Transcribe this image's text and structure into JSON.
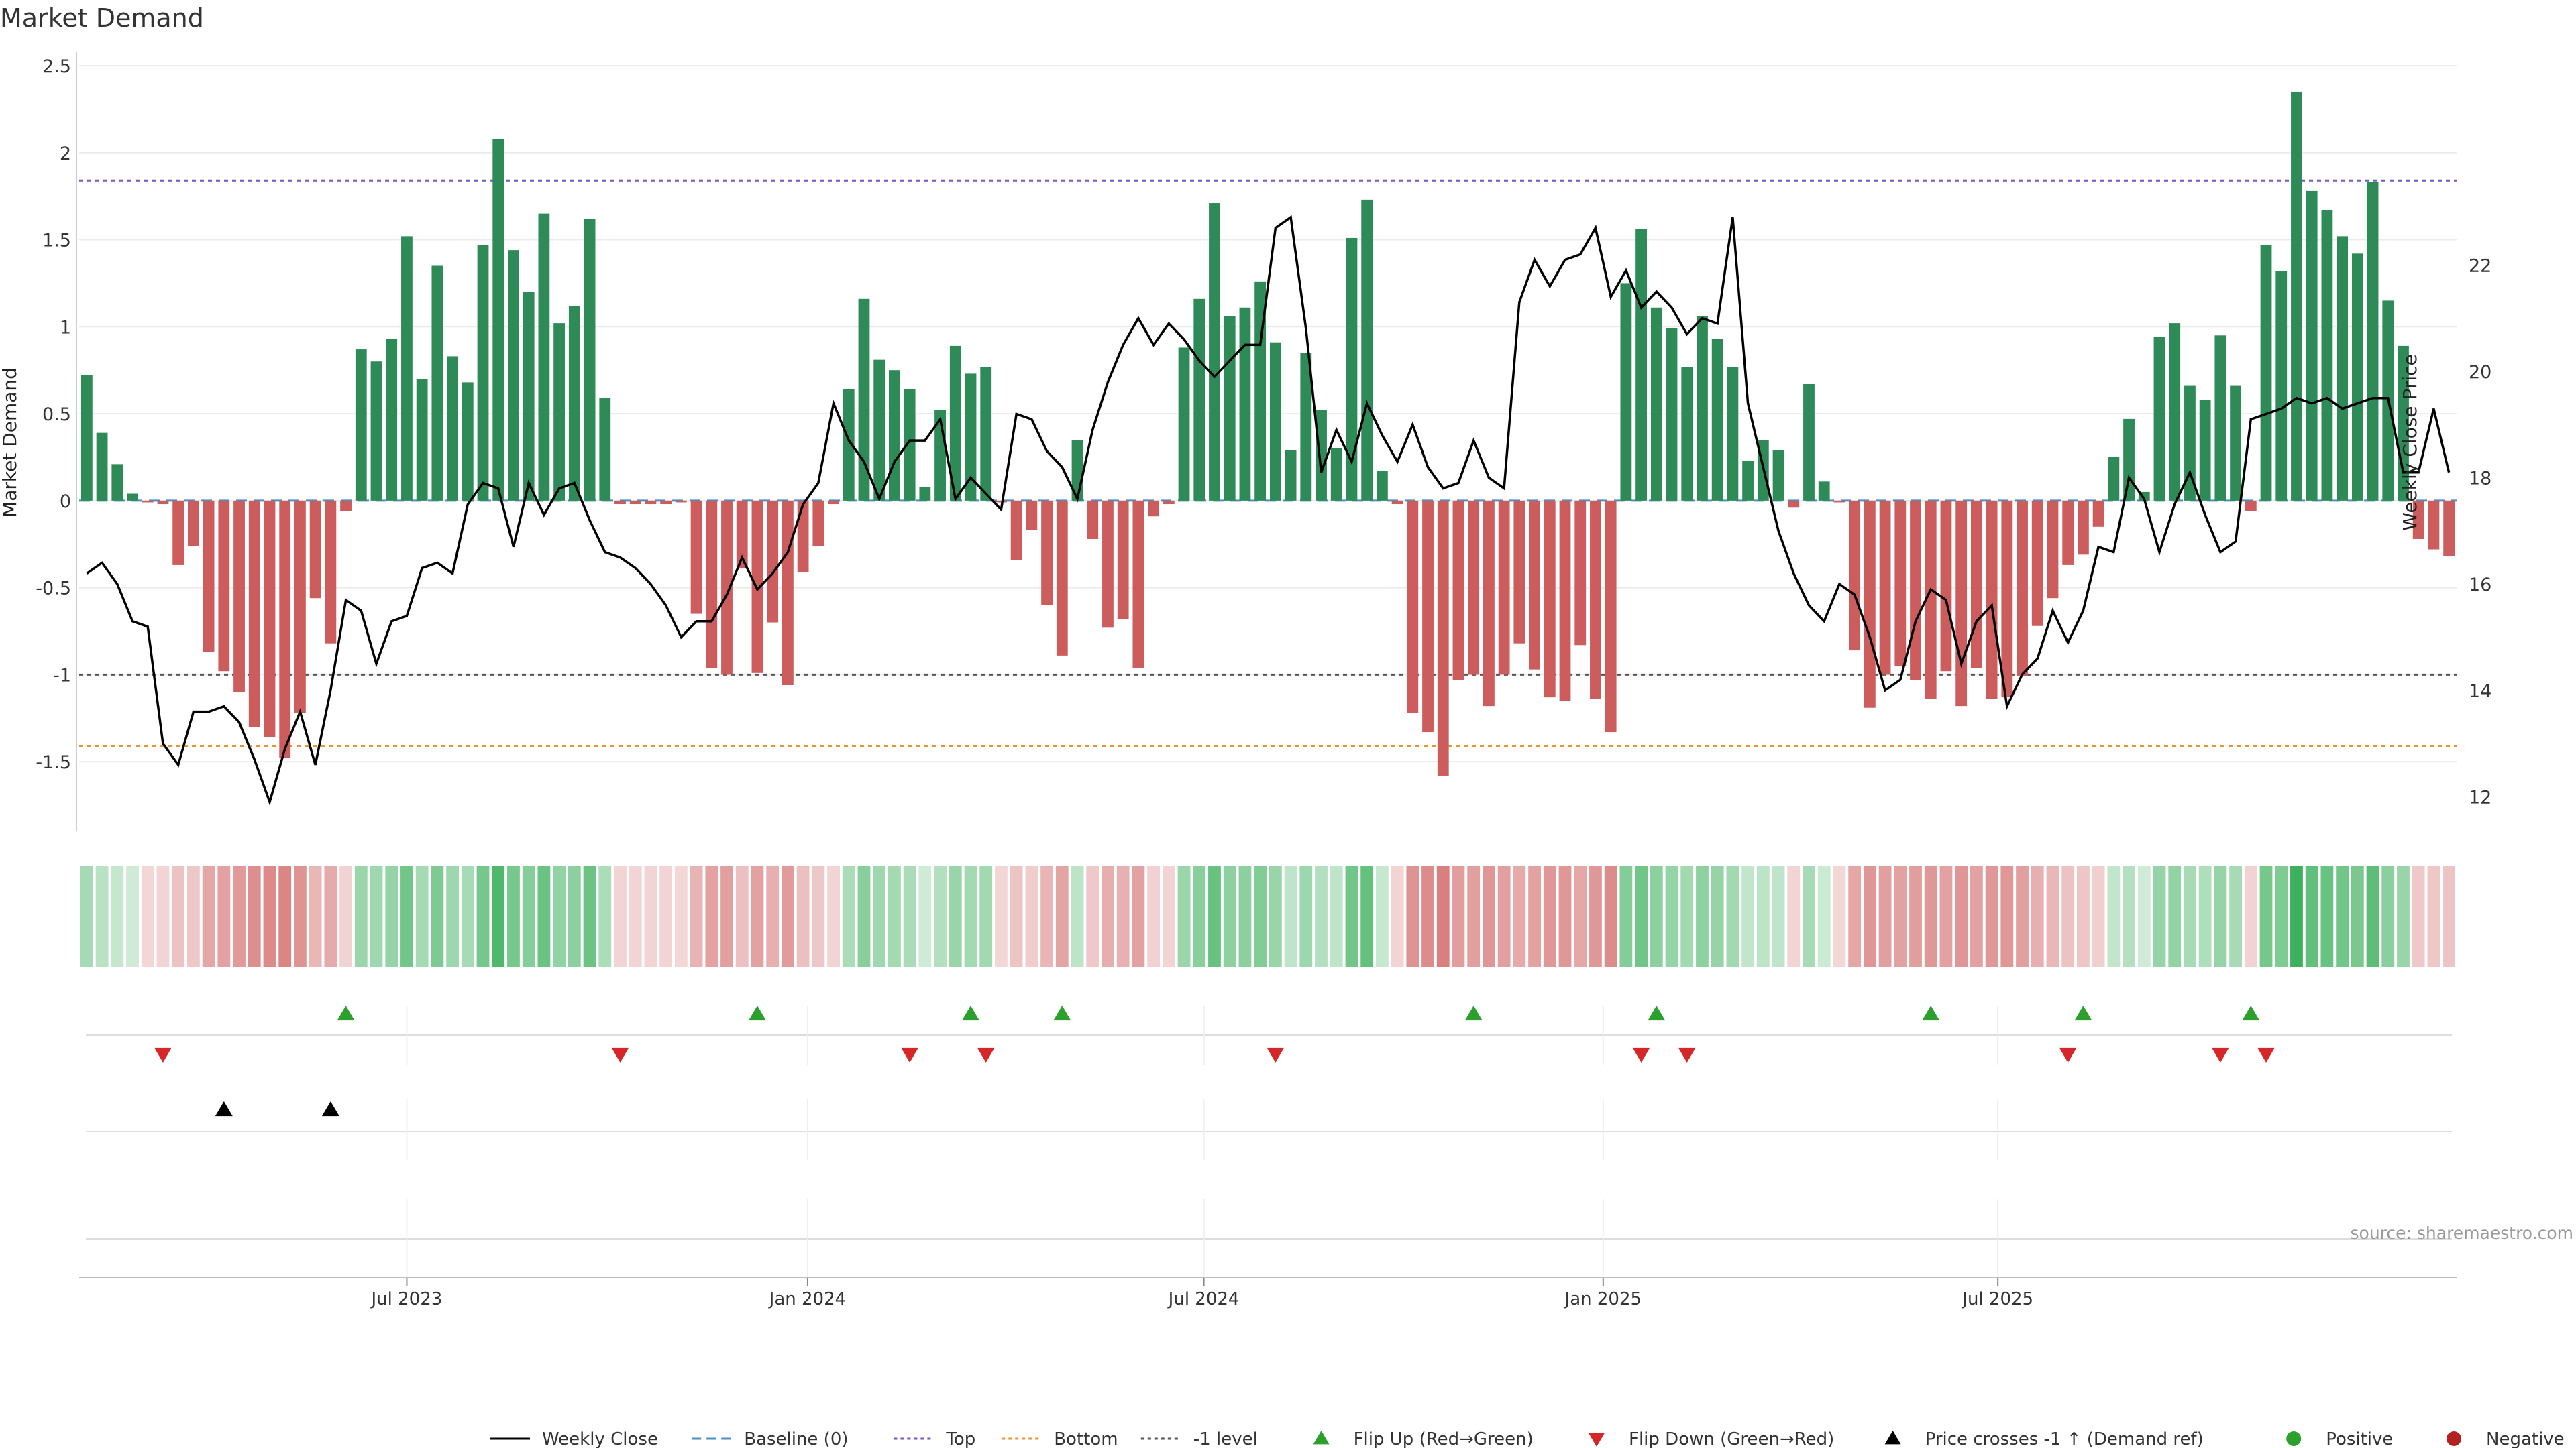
{
  "title": "Market Demand",
  "source_note": "source: sharemaestro.com",
  "colors": {
    "positive_bar": "#2e8b57",
    "negative_bar": "#cd5c5c",
    "price_line": "#000000",
    "baseline": "#4a90c2",
    "top_line": "#6a5acd",
    "bottom_line": "#e8962c",
    "minus1_line": "#555555",
    "flip_up": "#2ca02c",
    "flip_down": "#d62728",
    "cross_marker": "#000000",
    "positive_dot": "#2ca02c",
    "negative_dot": "#b22222",
    "grid": "#ebebeb"
  },
  "legend": [
    {
      "label": "Weekly Close",
      "kind": "line",
      "style": "solid",
      "color": "#000000"
    },
    {
      "label": "Baseline (0)",
      "kind": "line",
      "style": "dash",
      "color": "#4a90c2"
    },
    {
      "label": "Top",
      "kind": "line",
      "style": "dot",
      "color": "#6a5acd"
    },
    {
      "label": "Bottom",
      "kind": "line",
      "style": "dot",
      "color": "#e8962c"
    },
    {
      "label": "-1 level",
      "kind": "line",
      "style": "dot",
      "color": "#555555"
    },
    {
      "label": "Flip Up (Red→Green)",
      "kind": "tri-up",
      "color": "#2ca02c"
    },
    {
      "label": "Flip Down (Green→Red)",
      "kind": "tri-down",
      "color": "#d62728"
    },
    {
      "label": "Price crosses -1 ↑ (Demand ref)",
      "kind": "tri-up",
      "color": "#000000"
    },
    {
      "label": "Positive",
      "kind": "dot",
      "color": "#2ca02c"
    },
    {
      "label": "Negative",
      "kind": "dot",
      "color": "#b22222"
    }
  ],
  "chart_data": {
    "type": "bar",
    "title": "Market Demand",
    "ylabel": "Market Demand",
    "y2label": "Weekly Close Price",
    "ylim": [
      -1.9,
      2.5
    ],
    "y2lim": [
      11.35,
      25.75
    ],
    "yticks": [
      2.5,
      2,
      1.5,
      1,
      0.5,
      0,
      -0.5,
      -1,
      -1.5
    ],
    "y2ticks": [
      22,
      20,
      18,
      16,
      14,
      12
    ],
    "xticks": [
      "Jul 2023",
      "Jan 2024",
      "Jul 2024",
      "Jan 2025",
      "Jul 2025"
    ],
    "xtick_index": [
      21.5,
      47.8,
      73.8,
      100,
      125.9
    ],
    "legend_position": "bottom",
    "grid": true,
    "top_level": 1.84,
    "bottom_level": -1.41,
    "minus1_level": -1.0,
    "series": [
      {
        "name": "Market Demand",
        "type": "bar",
        "values": [
          0.72,
          0.39,
          0.21,
          0.04,
          -0.01,
          -0.02,
          -0.37,
          -0.26,
          -0.87,
          -0.98,
          -1.1,
          -1.3,
          -1.36,
          -1.48,
          -1.22,
          -0.56,
          -0.82,
          -0.06,
          0.87,
          0.8,
          0.93,
          1.52,
          0.7,
          1.35,
          0.83,
          0.68,
          1.47,
          2.08,
          1.44,
          1.2,
          1.65,
          1.02,
          1.12,
          1.62,
          0.59,
          -0.02,
          -0.02,
          -0.02,
          -0.02,
          -0.01,
          -0.65,
          -0.96,
          -1.0,
          -0.39,
          -0.99,
          -0.7,
          -1.06,
          -0.41,
          -0.26,
          -0.02,
          0.64,
          1.16,
          0.81,
          0.75,
          0.64,
          0.08,
          0.52,
          0.89,
          0.73,
          0.77,
          -0.01,
          -0.34,
          -0.17,
          -0.6,
          -0.89,
          0.35,
          -0.22,
          -0.73,
          -0.68,
          -0.96,
          -0.09,
          -0.02,
          0.88,
          1.16,
          1.71,
          1.06,
          1.11,
          1.26,
          0.91,
          0.29,
          0.85,
          0.52,
          0.3,
          1.51,
          1.73,
          0.17,
          -0.02,
          -1.22,
          -1.33,
          -1.58,
          -1.03,
          -1.0,
          -1.18,
          -1.0,
          -0.82,
          -0.97,
          -1.13,
          -1.15,
          -0.83,
          -1.14,
          -1.33,
          1.25,
          1.56,
          1.11,
          0.99,
          0.77,
          1.06,
          0.93,
          0.77,
          0.23,
          0.35,
          0.29,
          -0.04,
          0.67,
          0.11,
          -0.01,
          -0.86,
          -1.19,
          -1.0,
          -0.95,
          -1.03,
          -1.14,
          -0.98,
          -1.18,
          -0.96,
          -1.14,
          -1.13,
          -1.01,
          -0.72,
          -0.56,
          -0.37,
          -0.31,
          -0.15,
          0.25,
          0.47,
          0.05,
          0.94,
          1.02,
          0.66,
          0.58,
          0.95,
          0.66,
          -0.06,
          1.47,
          1.32,
          2.35,
          1.78,
          1.67,
          1.52,
          1.42,
          1.83,
          1.15,
          0.89,
          -0.22,
          -0.28,
          -0.32
        ]
      },
      {
        "name": "Weekly Close",
        "type": "line",
        "axis": "right",
        "values": [
          16.2,
          16.4,
          16.0,
          15.3,
          15.2,
          13.0,
          12.6,
          13.6,
          13.6,
          13.7,
          13.4,
          12.7,
          11.9,
          12.9,
          13.6,
          12.6,
          14.0,
          15.7,
          15.5,
          14.5,
          15.3,
          15.4,
          16.3,
          16.4,
          16.2,
          17.5,
          17.9,
          17.8,
          16.7,
          17.9,
          17.3,
          17.8,
          17.9,
          17.2,
          16.6,
          16.5,
          16.3,
          16.0,
          15.6,
          15.0,
          15.3,
          15.3,
          15.8,
          16.5,
          15.9,
          16.2,
          16.6,
          17.5,
          17.9,
          19.4,
          18.7,
          18.3,
          17.6,
          18.3,
          18.7,
          18.7,
          19.1,
          17.6,
          18.0,
          17.7,
          17.4,
          19.2,
          19.1,
          18.5,
          18.2,
          17.6,
          18.9,
          19.8,
          20.5,
          21.0,
          20.5,
          20.9,
          20.6,
          20.2,
          19.9,
          20.2,
          20.5,
          20.5,
          22.7,
          22.9,
          20.8,
          18.1,
          18.9,
          18.3,
          19.4,
          18.8,
          18.3,
          19.0,
          18.2,
          17.8,
          17.9,
          18.7,
          18.0,
          17.8,
          21.3,
          22.1,
          21.6,
          22.1,
          22.2,
          22.7,
          21.4,
          21.9,
          21.2,
          21.5,
          21.2,
          20.7,
          21.0,
          20.9,
          22.9,
          19.4,
          18.2,
          17.0,
          16.2,
          15.6,
          15.3,
          16.0,
          15.8,
          15.0,
          14.0,
          14.2,
          15.3,
          15.9,
          15.7,
          14.5,
          15.3,
          15.6,
          13.7,
          14.3,
          14.6,
          15.5,
          14.9,
          15.5,
          16.7,
          16.6,
          18.0,
          17.6,
          16.6,
          17.5,
          18.1,
          17.3,
          16.6,
          16.8,
          19.1,
          19.2,
          19.3,
          19.5,
          19.4,
          19.5,
          19.3,
          19.4,
          19.5,
          19.5,
          18.1,
          18.1,
          19.3,
          18.1
        ]
      }
    ],
    "heatmap_strip": {
      "description_values": "same as Market Demand"
    },
    "flip_up_index": [
      17,
      44,
      58,
      64,
      91,
      103,
      121,
      131,
      142
    ],
    "flip_down_index": [
      5,
      35,
      54,
      59,
      78,
      102,
      105,
      130,
      140,
      143
    ],
    "price_cross_up_index": [
      9,
      16
    ]
  }
}
